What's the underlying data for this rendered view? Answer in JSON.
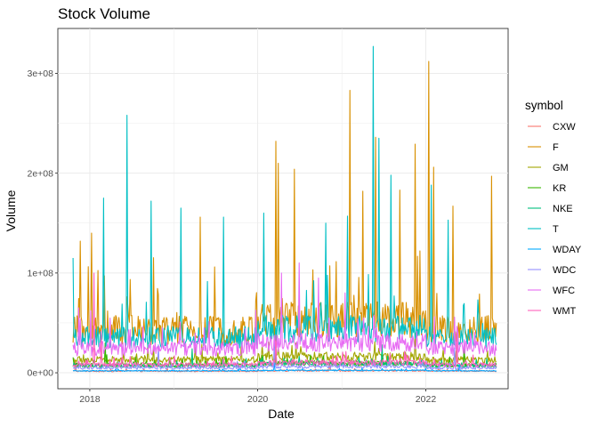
{
  "chart_data": {
    "type": "line",
    "title": "Stock Volume",
    "xlabel": "Date",
    "ylabel": "Volume",
    "x_ticks": [
      {
        "value": "2018-01-01",
        "label": "2018"
      },
      {
        "value": "2020-01-01",
        "label": "2020"
      },
      {
        "value": "2022-01-01",
        "label": "2022"
      }
    ],
    "y_ticks": [
      {
        "value": 0,
        "label": "0e+00"
      },
      {
        "value": 100000000,
        "label": "1e+08"
      },
      {
        "value": 200000000,
        "label": "2e+08"
      },
      {
        "value": 300000000,
        "label": "3e+08"
      }
    ],
    "xlim": [
      "2017-08-15",
      "2022-12-25"
    ],
    "ylim": [
      -16000000,
      345000000
    ],
    "grid": true,
    "legend": {
      "title": "symbol",
      "position": "right"
    },
    "series": [
      {
        "name": "CXW",
        "color": "#F8766D",
        "base": 1500000,
        "noise": 1200000,
        "spikes": [
          {
            "date": "2017-11-01",
            "value": 12000000
          },
          {
            "date": "2020-11-10",
            "value": 9000000
          }
        ]
      },
      {
        "name": "F",
        "color": "#D89000",
        "base": 38000000,
        "noise": 30000000,
        "spikes": [
          {
            "date": "2017-11-20",
            "value": 132000000
          },
          {
            "date": "2018-01-10",
            "value": 140000000
          },
          {
            "date": "2019-04-25",
            "value": 156000000
          },
          {
            "date": "2020-03-19",
            "value": 232000000
          },
          {
            "date": "2020-03-30",
            "value": 210000000
          },
          {
            "date": "2020-06-08",
            "value": 204000000
          },
          {
            "date": "2021-02-04",
            "value": 283000000
          },
          {
            "date": "2021-04-01",
            "value": 182000000
          },
          {
            "date": "2021-05-27",
            "value": 236000000
          },
          {
            "date": "2021-09-09",
            "value": 183000000
          },
          {
            "date": "2021-11-15",
            "value": 229000000
          },
          {
            "date": "2022-01-13",
            "value": 312000000
          },
          {
            "date": "2022-02-04",
            "value": 206000000
          },
          {
            "date": "2022-04-28",
            "value": 167000000
          },
          {
            "date": "2022-10-14",
            "value": 197000000
          }
        ]
      },
      {
        "name": "GM",
        "color": "#A3A500",
        "base": 12000000,
        "noise": 7000000,
        "spikes": [
          {
            "date": "2020-03-18",
            "value": 45000000
          },
          {
            "date": "2021-11-17",
            "value": 40000000
          }
        ]
      },
      {
        "name": "KR",
        "color": "#39B600",
        "base": 7000000,
        "noise": 4500000,
        "spikes": [
          {
            "date": "2018-03-08",
            "value": 30000000
          },
          {
            "date": "2020-03-16",
            "value": 33000000
          },
          {
            "date": "2022-06-16",
            "value": 28000000
          }
        ]
      },
      {
        "name": "NKE",
        "color": "#00BF7D",
        "base": 6500000,
        "noise": 3500000,
        "spikes": [
          {
            "date": "2019-03-22",
            "value": 24000000
          },
          {
            "date": "2021-06-25",
            "value": 28000000
          }
        ]
      },
      {
        "name": "T",
        "color": "#00BFC4",
        "base": 32000000,
        "noise": 22000000,
        "spikes": [
          {
            "date": "2017-10-20",
            "value": 115000000
          },
          {
            "date": "2018-06-13",
            "value": 258000000
          },
          {
            "date": "2018-03-01",
            "value": 175000000
          },
          {
            "date": "2018-09-26",
            "value": 172000000
          },
          {
            "date": "2019-02-01",
            "value": 165000000
          },
          {
            "date": "2019-08-05",
            "value": 156000000
          },
          {
            "date": "2020-01-28",
            "value": 160000000
          },
          {
            "date": "2020-10-22",
            "value": 150000000
          },
          {
            "date": "2021-01-27",
            "value": 157000000
          },
          {
            "date": "2021-05-17",
            "value": 327000000
          },
          {
            "date": "2021-06-10",
            "value": 235000000
          },
          {
            "date": "2021-08-02",
            "value": 198000000
          },
          {
            "date": "2022-01-25",
            "value": 188000000
          },
          {
            "date": "2022-04-08",
            "value": 153000000
          }
        ]
      },
      {
        "name": "WDAY",
        "color": "#00A9FF",
        "base": 1800000,
        "noise": 1000000,
        "spikes": [
          {
            "date": "2020-03-12",
            "value": 10000000
          },
          {
            "date": "2022-05-27",
            "value": 9000000
          }
        ]
      },
      {
        "name": "WDC",
        "color": "#9590FF",
        "base": 4500000,
        "noise": 3000000,
        "spikes": [
          {
            "date": "2018-10-26",
            "value": 28000000
          },
          {
            "date": "2020-03-13",
            "value": 30000000
          },
          {
            "date": "2022-05-06",
            "value": 25000000
          }
        ]
      },
      {
        "name": "WFC",
        "color": "#E76BF3",
        "base": 22000000,
        "noise": 15000000,
        "spikes": [
          {
            "date": "2020-04-15",
            "value": 100000000
          },
          {
            "date": "2020-06-30",
            "value": 110000000
          },
          {
            "date": "2020-09-21",
            "value": 95000000
          },
          {
            "date": "2021-01-15",
            "value": 80000000
          },
          {
            "date": "2017-11-15",
            "value": 65000000
          }
        ]
      },
      {
        "name": "WMT",
        "color": "#FF62BC",
        "base": 7500000,
        "noise": 4500000,
        "spikes": [
          {
            "date": "2018-01-18",
            "value": 100000000
          },
          {
            "date": "2018-02-20",
            "value": 42000000
          },
          {
            "date": "2020-03-20",
            "value": 38000000
          },
          {
            "date": "2022-05-17",
            "value": 40000000
          }
        ]
      }
    ]
  }
}
